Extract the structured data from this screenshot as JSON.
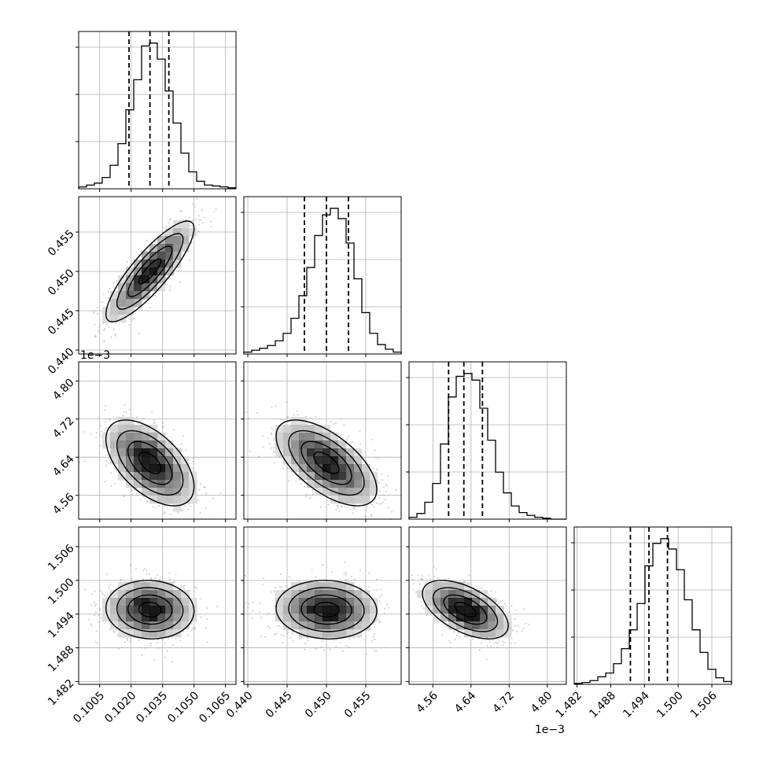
{
  "chart_data": {
    "type": "corner",
    "grid": true,
    "parameters": [
      {
        "range": [
          0.0995,
          0.107
        ],
        "ticks": [
          "0.1005",
          "0.1020",
          "0.1035",
          "0.1050",
          "0.1065"
        ],
        "tick_values": [
          0.1005,
          0.102,
          0.1035,
          0.105,
          0.1065
        ],
        "axis_offset_label": "",
        "quantiles": [
          0.1019,
          0.1029,
          0.1038
        ],
        "hist_edges": [
          0.0995,
          0.107
        ],
        "hist_counts": [
          2,
          4,
          6,
          12,
          25,
          48,
          84,
          116,
          152,
          155,
          138,
          104,
          70,
          38,
          18,
          8,
          4,
          3,
          2,
          1
        ]
      },
      {
        "range": [
          0.4395,
          0.4595
        ],
        "ticks": [
          "0.440",
          "0.445",
          "0.450",
          "0.455"
        ],
        "tick_values": [
          0.44,
          0.445,
          0.45,
          0.455
        ],
        "axis_offset_label": "",
        "quantiles": [
          0.4472,
          0.45,
          0.4528
        ],
        "hist_edges": [
          0.4395,
          0.4595
        ],
        "hist_counts": [
          2,
          4,
          6,
          9,
          14,
          22,
          38,
          62,
          92,
          126,
          148,
          155,
          144,
          118,
          80,
          44,
          22,
          10,
          5,
          2
        ]
      },
      {
        "range": [
          4.51,
          4.84
        ],
        "ticks": [
          "4.56",
          "4.64",
          "4.72",
          "4.80"
        ],
        "tick_values": [
          4.56,
          4.64,
          4.72,
          4.8
        ],
        "axis_offset_label": "1e−3",
        "quantiles": [
          4.593,
          4.625,
          4.664
        ],
        "hist_edges": [
          4.51,
          4.84
        ],
        "hist_counts": [
          2,
          6,
          18,
          38,
          80,
          130,
          152,
          155,
          148,
          118,
          84,
          50,
          28,
          14,
          7,
          4,
          2,
          1,
          0,
          0
        ]
      },
      {
        "range": [
          1.4815,
          1.5095
        ],
        "ticks": [
          "1.482",
          "1.488",
          "1.494",
          "1.500",
          "1.506"
        ],
        "tick_values": [
          1.482,
          1.488,
          1.494,
          1.5,
          1.506
        ],
        "axis_offset_label": "1e−3",
        "quantiles": [
          1.4915,
          1.4948,
          1.4981
        ],
        "hist_edges": [
          1.4815,
          1.5095
        ],
        "hist_counts": [
          1,
          2,
          4,
          8,
          12,
          22,
          38,
          58,
          86,
          126,
          150,
          155,
          144,
          122,
          90,
          58,
          34,
          16,
          7,
          3
        ]
      }
    ],
    "pairs": [
      {
        "x": 0,
        "y": 1,
        "mean": [
          0.1029,
          0.45
        ],
        "sd": [
          0.00105,
          0.0032
        ],
        "corr": 0.85
      },
      {
        "x": 0,
        "y": 2,
        "mean": [
          0.1029,
          4.628
        ],
        "sd": [
          0.00105,
          0.045
        ],
        "corr": -0.55
      },
      {
        "x": 1,
        "y": 2,
        "mean": [
          0.45,
          4.628
        ],
        "sd": [
          0.0032,
          0.045
        ],
        "corr": -0.62
      },
      {
        "x": 0,
        "y": 3,
        "mean": [
          0.1029,
          1.4948
        ],
        "sd": [
          0.00105,
          0.0026
        ],
        "corr": -0.05
      },
      {
        "x": 1,
        "y": 3,
        "mean": [
          0.45,
          1.4948
        ],
        "sd": [
          0.0032,
          0.0026
        ],
        "corr": -0.05
      },
      {
        "x": 2,
        "y": 3,
        "mean": [
          4.628,
          1.4948
        ],
        "sd": [
          0.045,
          0.0026
        ],
        "corr": -0.55
      }
    ],
    "contour_levels_sigma": [
      0.5,
      1.0,
      1.5,
      2.0
    ],
    "colors": {
      "contour": "#000000",
      "points": "#b5b5b5",
      "grid": "#b0b0b0"
    }
  }
}
